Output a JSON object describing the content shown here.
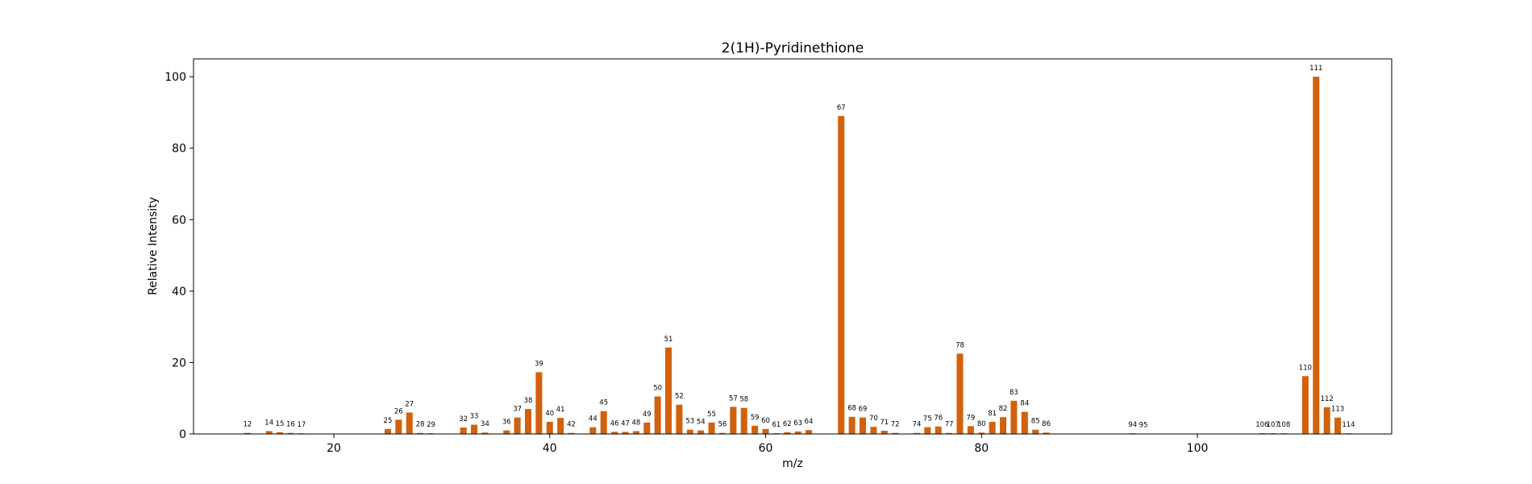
{
  "chart_data": {
    "type": "bar",
    "title": "2(1H)-Pyridinethione",
    "xlabel": "m/z",
    "ylabel": "Relative Intensity",
    "xlim": [
      7,
      118
    ],
    "ylim": [
      0,
      105
    ],
    "xticks": [
      20,
      40,
      60,
      80,
      100
    ],
    "yticks": [
      0,
      20,
      40,
      60,
      80,
      100
    ],
    "grid": false,
    "bar_color": "#d2610c",
    "bars": [
      {
        "x": 12,
        "y": 0.3
      },
      {
        "x": 14,
        "y": 0.8
      },
      {
        "x": 15,
        "y": 0.5
      },
      {
        "x": 16,
        "y": 0.3
      },
      {
        "x": 17,
        "y": 0.2
      },
      {
        "x": 25,
        "y": 1.4
      },
      {
        "x": 26,
        "y": 4.0
      },
      {
        "x": 27,
        "y": 6.0
      },
      {
        "x": 28,
        "y": 0.3
      },
      {
        "x": 29,
        "y": 0.2
      },
      {
        "x": 32,
        "y": 1.8
      },
      {
        "x": 33,
        "y": 2.6
      },
      {
        "x": 34,
        "y": 0.4
      },
      {
        "x": 36,
        "y": 1.0
      },
      {
        "x": 37,
        "y": 4.6
      },
      {
        "x": 38,
        "y": 7.0
      },
      {
        "x": 39,
        "y": 17.3
      },
      {
        "x": 40,
        "y": 3.4
      },
      {
        "x": 41,
        "y": 4.5
      },
      {
        "x": 42,
        "y": 0.3
      },
      {
        "x": 44,
        "y": 1.9
      },
      {
        "x": 45,
        "y": 6.4
      },
      {
        "x": 46,
        "y": 0.6
      },
      {
        "x": 47,
        "y": 0.6
      },
      {
        "x": 48,
        "y": 0.8
      },
      {
        "x": 49,
        "y": 3.2
      },
      {
        "x": 50,
        "y": 10.5
      },
      {
        "x": 51,
        "y": 24.2
      },
      {
        "x": 52,
        "y": 8.2
      },
      {
        "x": 53,
        "y": 1.2
      },
      {
        "x": 54,
        "y": 1.0
      },
      {
        "x": 55,
        "y": 3.2
      },
      {
        "x": 56,
        "y": 0.3
      },
      {
        "x": 57,
        "y": 7.6
      },
      {
        "x": 58,
        "y": 7.3
      },
      {
        "x": 59,
        "y": 2.3
      },
      {
        "x": 60,
        "y": 1.4
      },
      {
        "x": 61,
        "y": 0.2
      },
      {
        "x": 62,
        "y": 0.5
      },
      {
        "x": 63,
        "y": 0.7
      },
      {
        "x": 64,
        "y": 1.1
      },
      {
        "x": 67,
        "y": 89.0
      },
      {
        "x": 68,
        "y": 4.8
      },
      {
        "x": 69,
        "y": 4.6
      },
      {
        "x": 70,
        "y": 2.0
      },
      {
        "x": 71,
        "y": 0.9
      },
      {
        "x": 72,
        "y": 0.3
      },
      {
        "x": 74,
        "y": 0.3
      },
      {
        "x": 75,
        "y": 1.9
      },
      {
        "x": 76,
        "y": 2.1
      },
      {
        "x": 77,
        "y": 0.3
      },
      {
        "x": 78,
        "y": 22.5
      },
      {
        "x": 79,
        "y": 2.2
      },
      {
        "x": 80,
        "y": 0.4
      },
      {
        "x": 81,
        "y": 3.4
      },
      {
        "x": 82,
        "y": 4.7
      },
      {
        "x": 83,
        "y": 9.3
      },
      {
        "x": 84,
        "y": 6.2
      },
      {
        "x": 85,
        "y": 1.2
      },
      {
        "x": 86,
        "y": 0.4
      },
      {
        "x": 94,
        "y": 0.2
      },
      {
        "x": 95,
        "y": 0.1
      },
      {
        "x": 106,
        "y": 0.2
      },
      {
        "x": 107,
        "y": 0.2
      },
      {
        "x": 108,
        "y": 0.2
      },
      {
        "x": 110,
        "y": 16.2
      },
      {
        "x": 111,
        "y": 100.0
      },
      {
        "x": 112,
        "y": 7.5
      },
      {
        "x": 113,
        "y": 4.6
      },
      {
        "x": 114,
        "y": 0.2
      }
    ]
  }
}
